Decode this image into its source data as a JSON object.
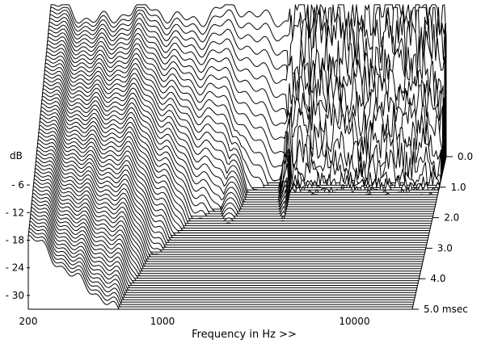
{
  "chart_data": {
    "type": "waterfall",
    "title": "",
    "xlabel": "Frequency in Hz >>",
    "ylabel": "dB",
    "y_axis": {
      "ticks": [
        -6,
        -12,
        -18,
        -24,
        -30
      ],
      "labels": [
        "- 6",
        "- 12",
        "- 18",
        "- 24",
        "- 30"
      ],
      "range": [
        -33,
        0
      ]
    },
    "x_axis": {
      "scale": "log",
      "range": [
        200,
        20000
      ],
      "ticks": [
        200,
        1000,
        10000
      ],
      "labels": [
        "200",
        "1000",
        "10000"
      ]
    },
    "z_axis": {
      "unit": "msec",
      "range": [
        0,
        5
      ],
      "ticks": [
        0,
        1,
        2,
        3,
        4,
        5
      ],
      "labels": [
        "0.0",
        "1.0",
        "2.0",
        "3.0",
        "4.0",
        "5.0"
      ],
      "slice_count": 65
    },
    "line_color": "#000000",
    "fill_color": "#ffffff",
    "background": "#ffffff"
  }
}
